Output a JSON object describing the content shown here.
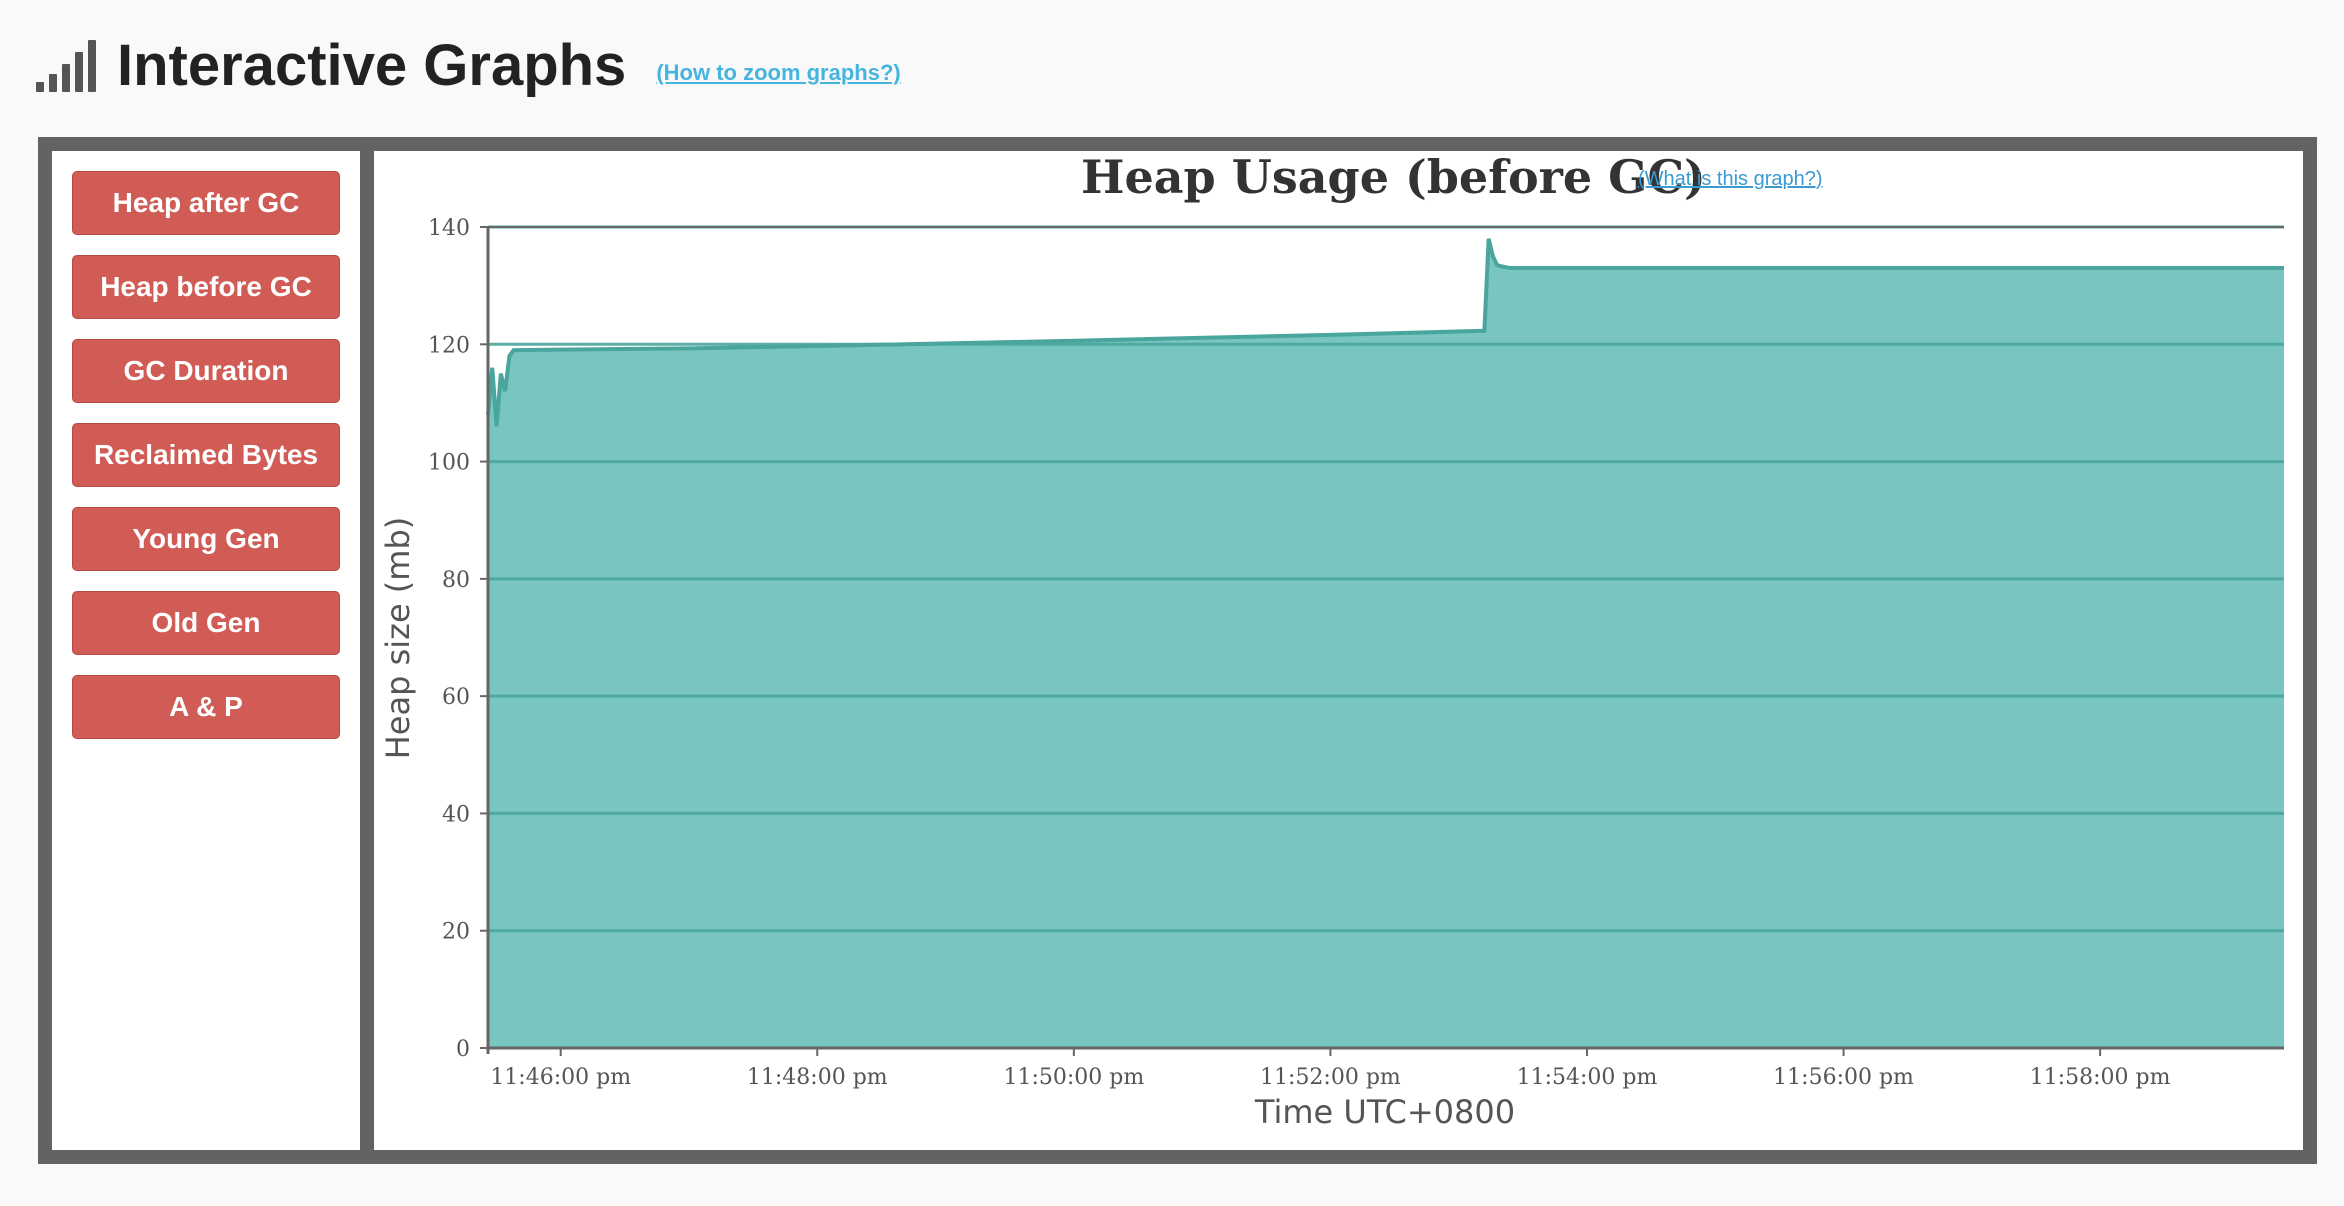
{
  "header": {
    "title": "Interactive Graphs",
    "help_link": "(How to zoom graphs?)"
  },
  "sidebar": {
    "buttons": [
      {
        "label": "Heap after GC"
      },
      {
        "label": "Heap before GC"
      },
      {
        "label": "GC Duration"
      },
      {
        "label": "Reclaimed Bytes"
      },
      {
        "label": "Young Gen"
      },
      {
        "label": "Old Gen"
      },
      {
        "label": "A & P"
      }
    ]
  },
  "graph": {
    "help_link": "(What is this graph?)"
  },
  "chart_data": {
    "type": "area",
    "title": "Heap Usage (before GC)",
    "xlabel": "Time UTC+0800",
    "ylabel": "Heap size (mb)",
    "ylim": [
      0,
      140
    ],
    "y_ticks": [
      0,
      20,
      40,
      60,
      80,
      100,
      120,
      140
    ],
    "x_ticks": [
      "11:46:00 pm",
      "11:48:00 pm",
      "11:50:00 pm",
      "11:52:00 pm",
      "11:54:00 pm",
      "11:56:00 pm",
      "11:58:00 pm"
    ],
    "xlim": [
      "11:45:26 pm",
      "11:59:26 pm"
    ],
    "color": "#78c6bf",
    "line_color": "#4aa69d",
    "grid": true,
    "series": [
      {
        "x": [
          "11:45:26 pm",
          "11:45:28 pm",
          "11:45:30 pm",
          "11:45:32 pm",
          "11:45:34 pm",
          "11:45:36 pm",
          "11:45:38 pm",
          "11:45:40 pm",
          "11:46:00 pm",
          "11:47:00 pm",
          "11:48:00 pm",
          "11:50:00 pm",
          "11:52:00 pm",
          "11:53:12 pm",
          "11:53:13 pm",
          "11:53:14 pm",
          "11:53:16 pm",
          "11:53:18 pm",
          "11:53:20 pm",
          "11:53:24 pm",
          "11:54:00 pm",
          "11:56:00 pm",
          "11:58:00 pm",
          "11:59:26 pm"
        ],
        "values": [
          108,
          116,
          106,
          115,
          112,
          118,
          119,
          119,
          119.1,
          119.3,
          119.7,
          120.6,
          121.6,
          122.3,
          130,
          138,
          135,
          133.5,
          133.3,
          133,
          133,
          133,
          133,
          133
        ]
      }
    ]
  }
}
